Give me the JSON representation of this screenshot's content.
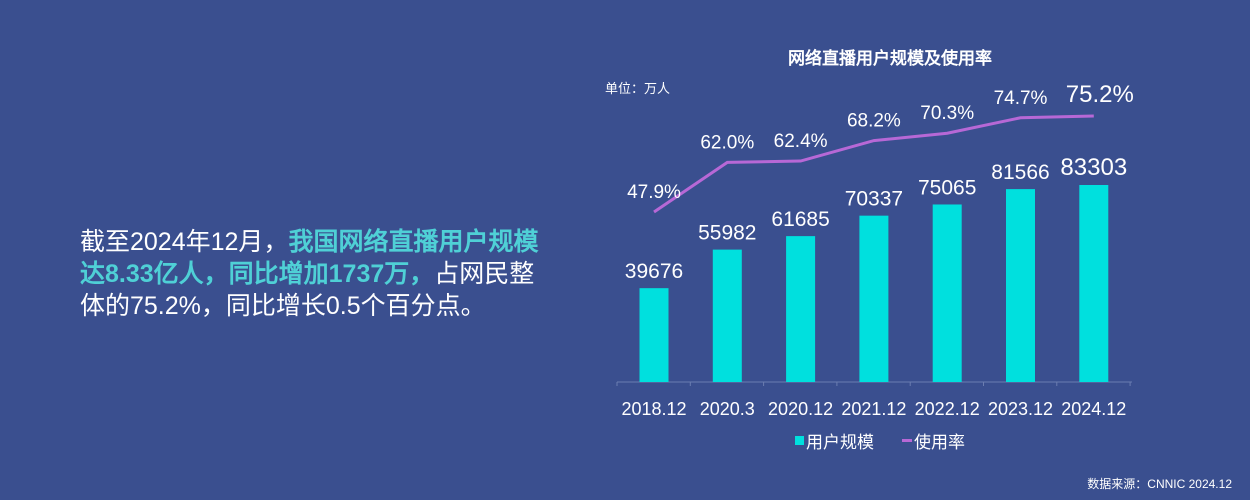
{
  "summary": {
    "part1": "截至2024年12月，",
    "part2": "我国网络直播用户规模达8.33亿人，同比增加1737万，",
    "part3": "占网民整体的75.2%，同比增长0.5个百分点。"
  },
  "chart": {
    "title": "网络直播用户规模及使用率",
    "unit": "单位：万人",
    "legend": {
      "bar": "用户规模",
      "line": "使用率"
    },
    "source": "数据来源：CNNIC 2024.12",
    "colors": {
      "bar": "#00e0de",
      "line": "#b768d6",
      "background": "#3a4f8f"
    }
  },
  "chart_data": {
    "type": "bar+line",
    "title": "网络直播用户规模及使用率",
    "categories": [
      "2018.12",
      "2020.3",
      "2020.12",
      "2021.12",
      "2022.12",
      "2023.12",
      "2024.12"
    ],
    "series": [
      {
        "name": "用户规模",
        "type": "bar",
        "unit": "万人",
        "values": [
          39676,
          55982,
          61685,
          70337,
          75065,
          81566,
          83303
        ]
      },
      {
        "name": "使用率",
        "type": "line",
        "unit": "%",
        "values": [
          47.9,
          62.0,
          62.4,
          68.2,
          70.3,
          74.7,
          75.2
        ]
      }
    ],
    "value_labels": {
      "bars": [
        "39676",
        "55982",
        "61685",
        "70337",
        "75065",
        "81566",
        "83303"
      ],
      "line": [
        "47.9%",
        "62.0%",
        "62.4%",
        "68.2%",
        "70.3%",
        "74.7%",
        "75.2%"
      ]
    },
    "xlabel": "",
    "ylabel": "单位：万人",
    "legend_position": "bottom",
    "grid": false
  }
}
